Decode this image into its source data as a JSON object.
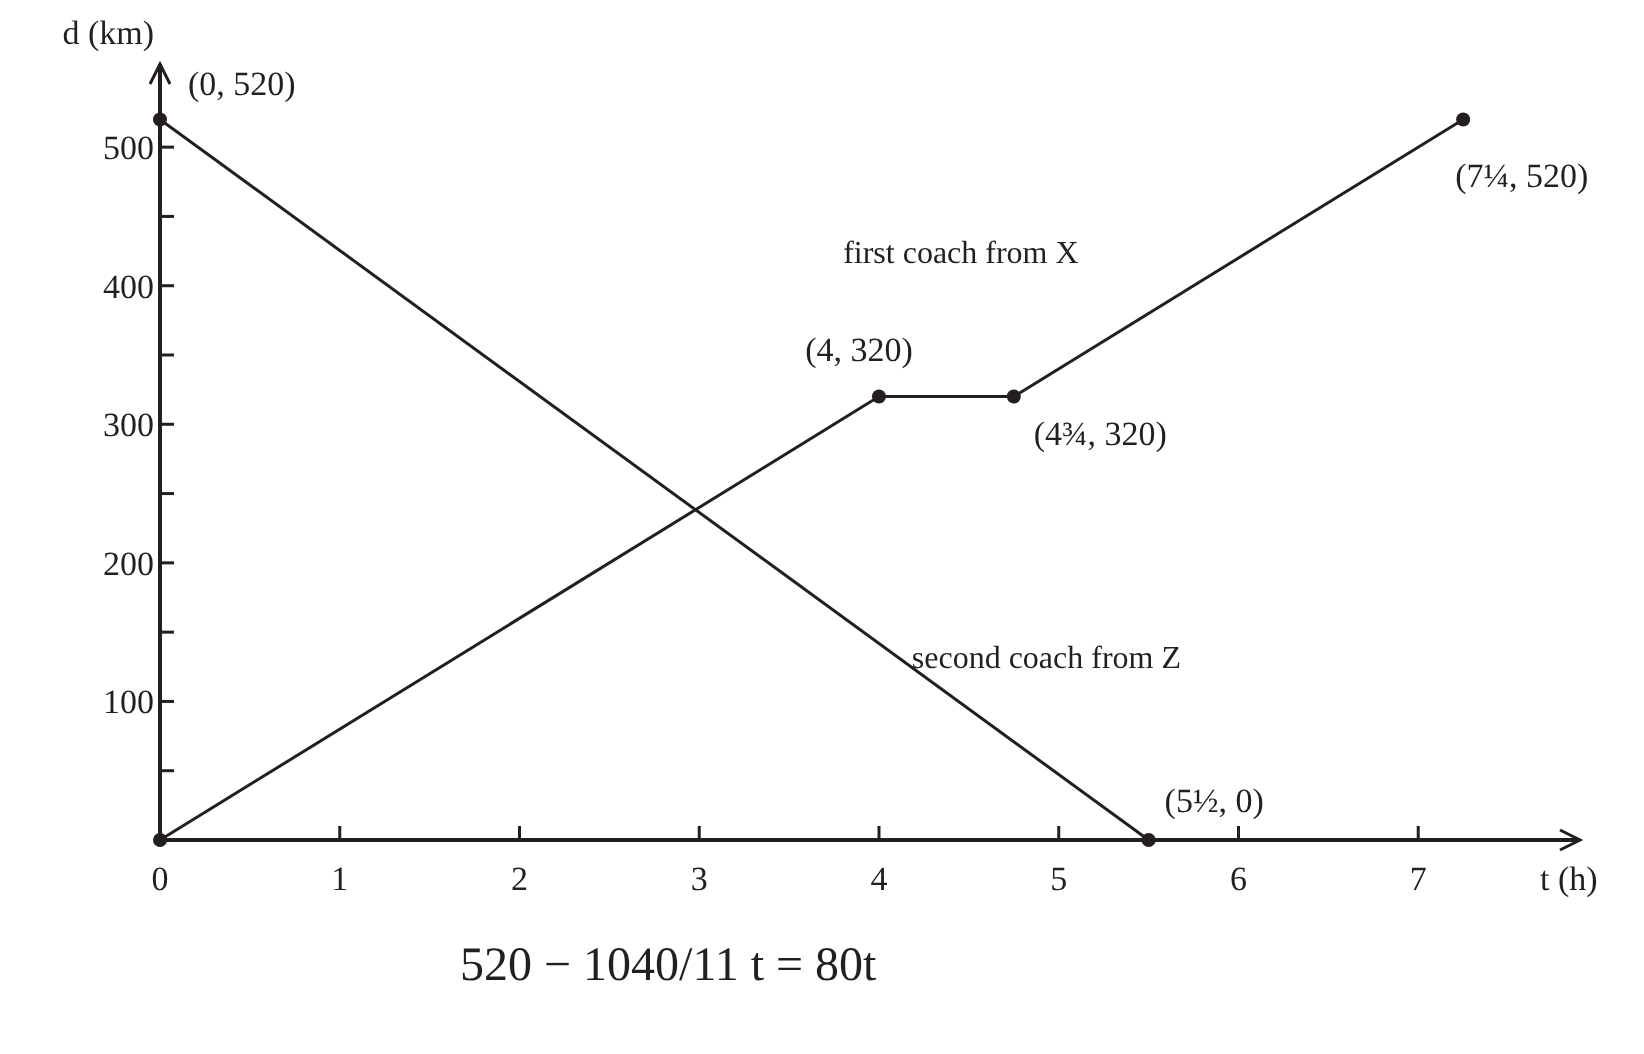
{
  "chart_data": {
    "type": "line",
    "xlabel": "t (h)",
    "ylabel": "d (km)",
    "xlim": [
      0,
      7.9
    ],
    "ylim": [
      0,
      560
    ],
    "xticks": [
      0,
      1,
      2,
      3,
      4,
      5,
      6,
      7
    ],
    "yticks": [
      {
        "value": 0,
        "label": null
      },
      {
        "value": 50,
        "label": null
      },
      100,
      {
        "value": 150,
        "label": null
      },
      200,
      {
        "value": 250,
        "label": null
      },
      300,
      {
        "value": 350,
        "label": null
      },
      400,
      {
        "value": 450,
        "label": null
      },
      500
    ],
    "marker": "circle",
    "line_style": "solid",
    "grid": false,
    "series": [
      {
        "name": "first coach from X",
        "color": "#231f20",
        "x": [
          0,
          4,
          4.75,
          7.25
        ],
        "values": [
          0,
          320,
          320,
          520
        ]
      },
      {
        "name": "second coach from Z",
        "color": "#231f20",
        "x": [
          0,
          5.5
        ],
        "values": [
          520,
          0
        ]
      }
    ],
    "annotations": [
      {
        "text": "(0, 520)",
        "x": 0,
        "y": 520
      },
      {
        "text": "(4, 320)",
        "x": 4,
        "y": 320
      },
      {
        "text": "(4¾, 320)",
        "x": 4.75,
        "y": 320
      },
      {
        "text": "(7¼, 520)",
        "x": 7.25,
        "y": 520
      },
      {
        "text": "(5½, 0)",
        "x": 5.5,
        "y": 0
      },
      "520 − 1040/11 t = 80t"
    ]
  }
}
